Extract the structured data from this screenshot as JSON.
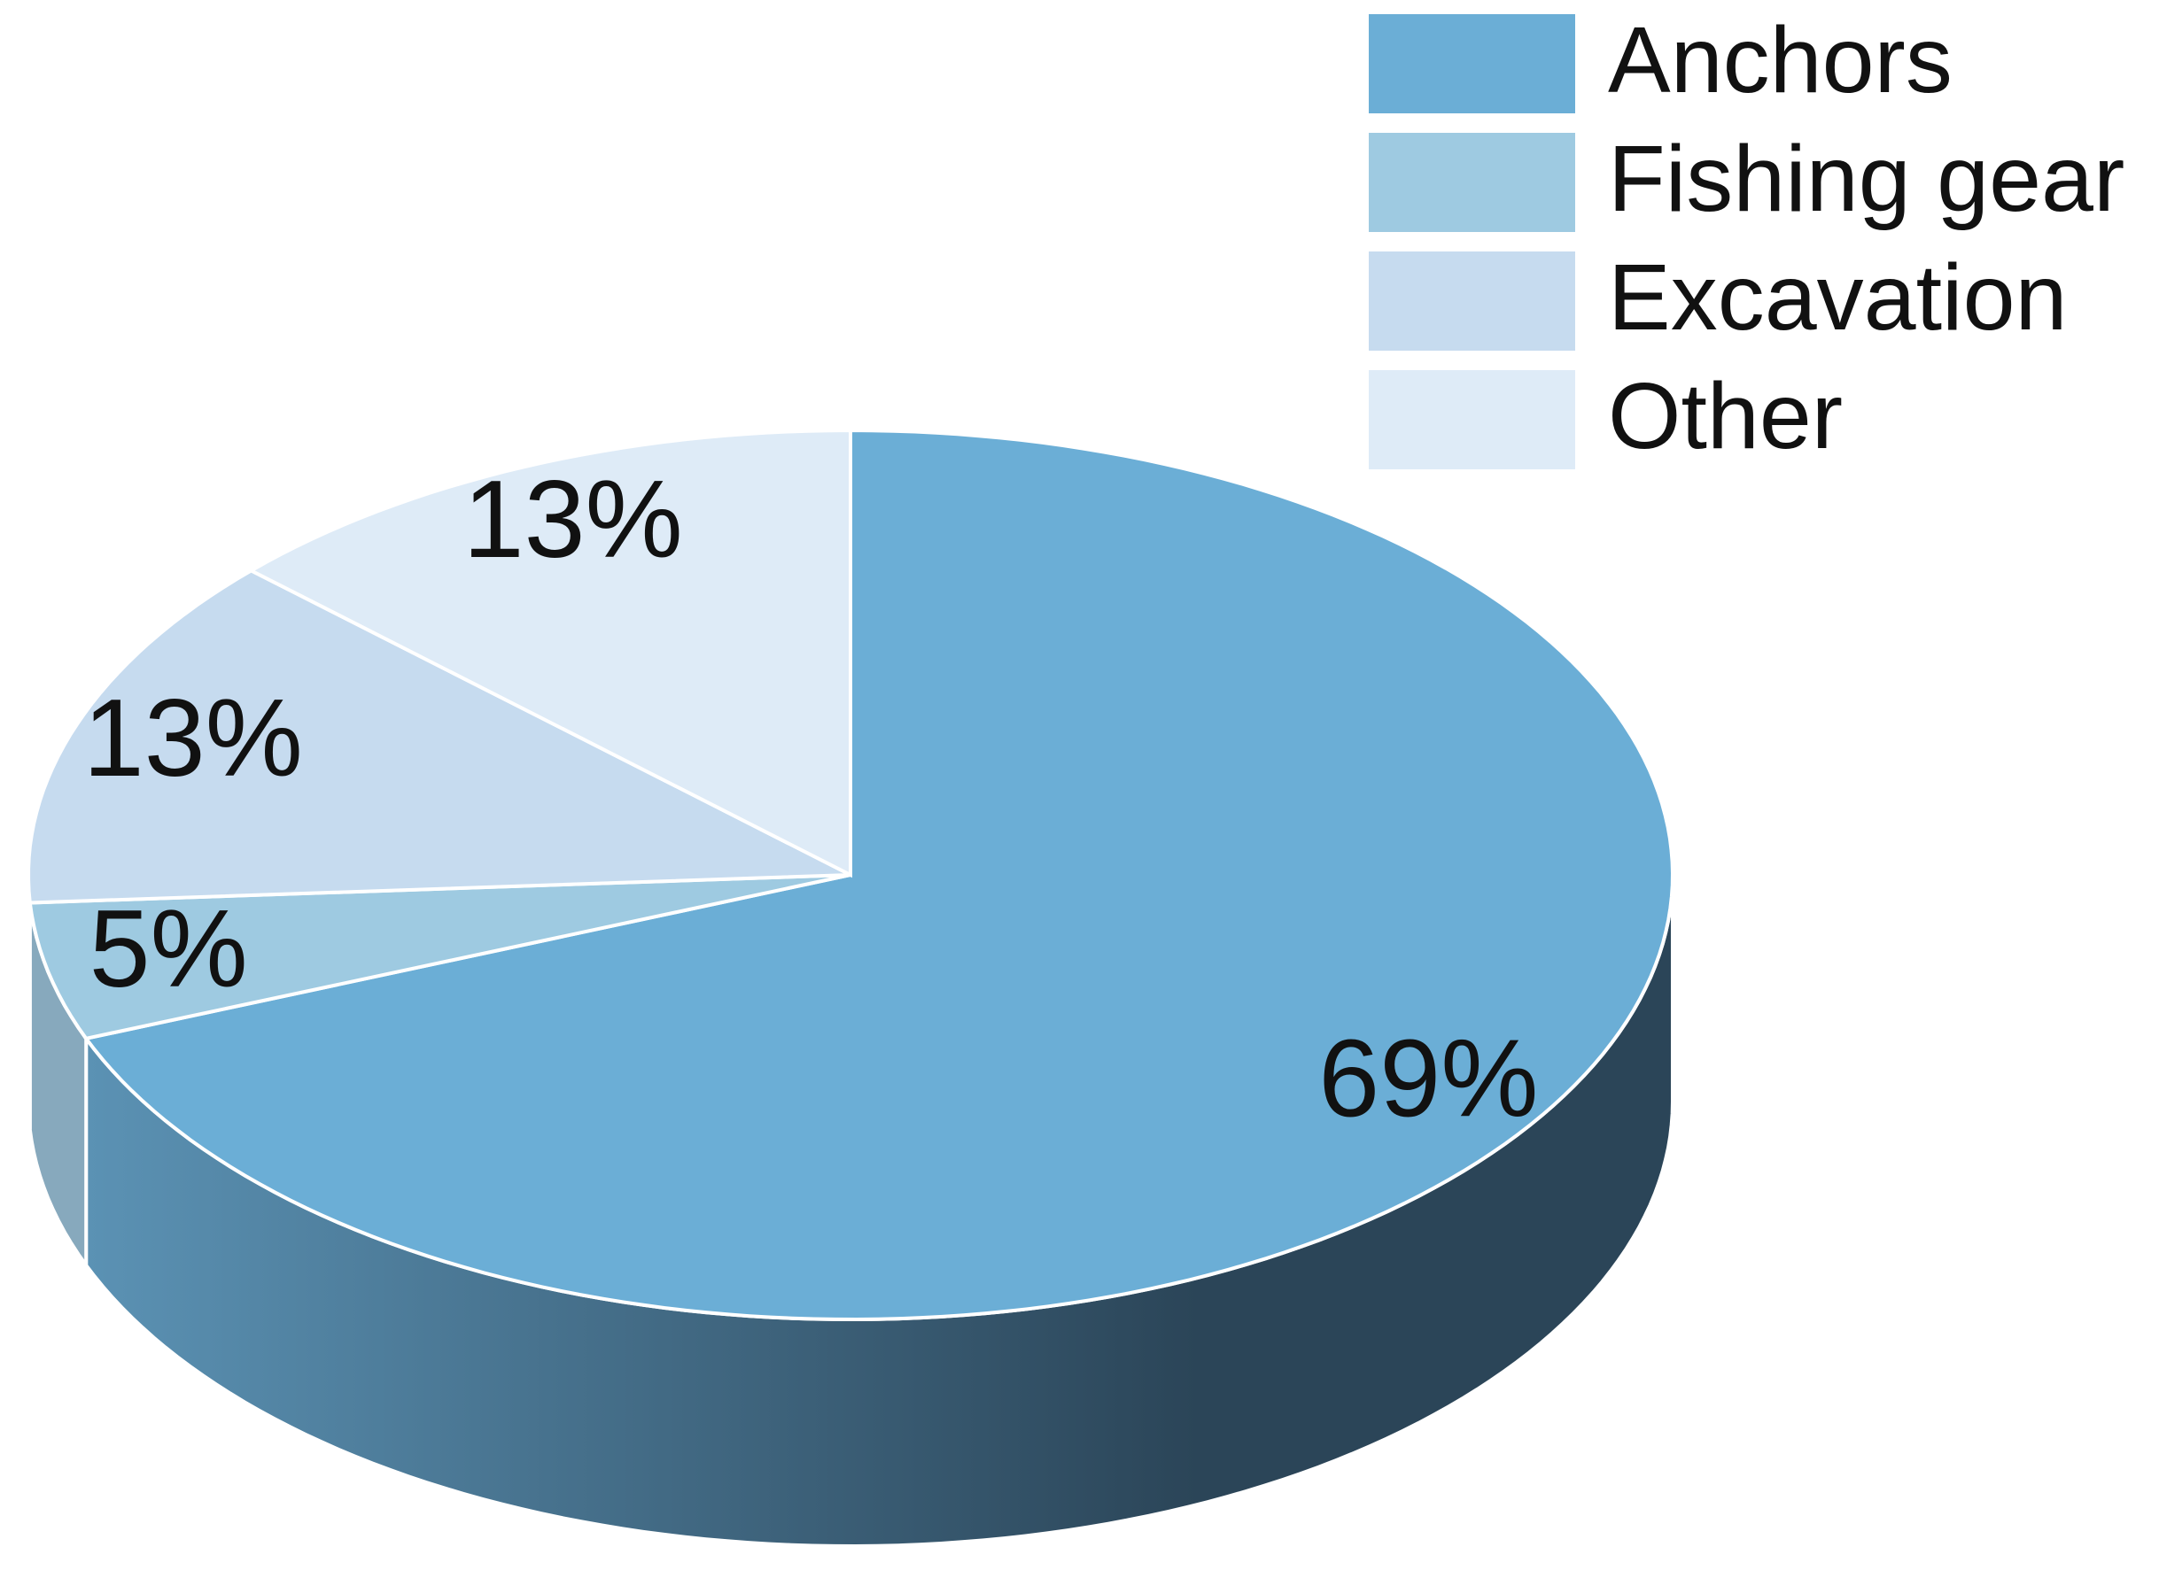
{
  "chart_data": {
    "type": "pie3d",
    "categories": [
      "Anchors",
      "Fishing gear",
      "Excavation",
      "Other"
    ],
    "values": [
      69,
      5,
      13,
      13
    ],
    "value_labels": [
      "69%",
      "5%",
      "13%",
      "13%"
    ],
    "colors": [
      "#6baed6",
      "#9ecae1",
      "#c6dbef",
      "#deebf7"
    ],
    "legend": "top-right"
  }
}
